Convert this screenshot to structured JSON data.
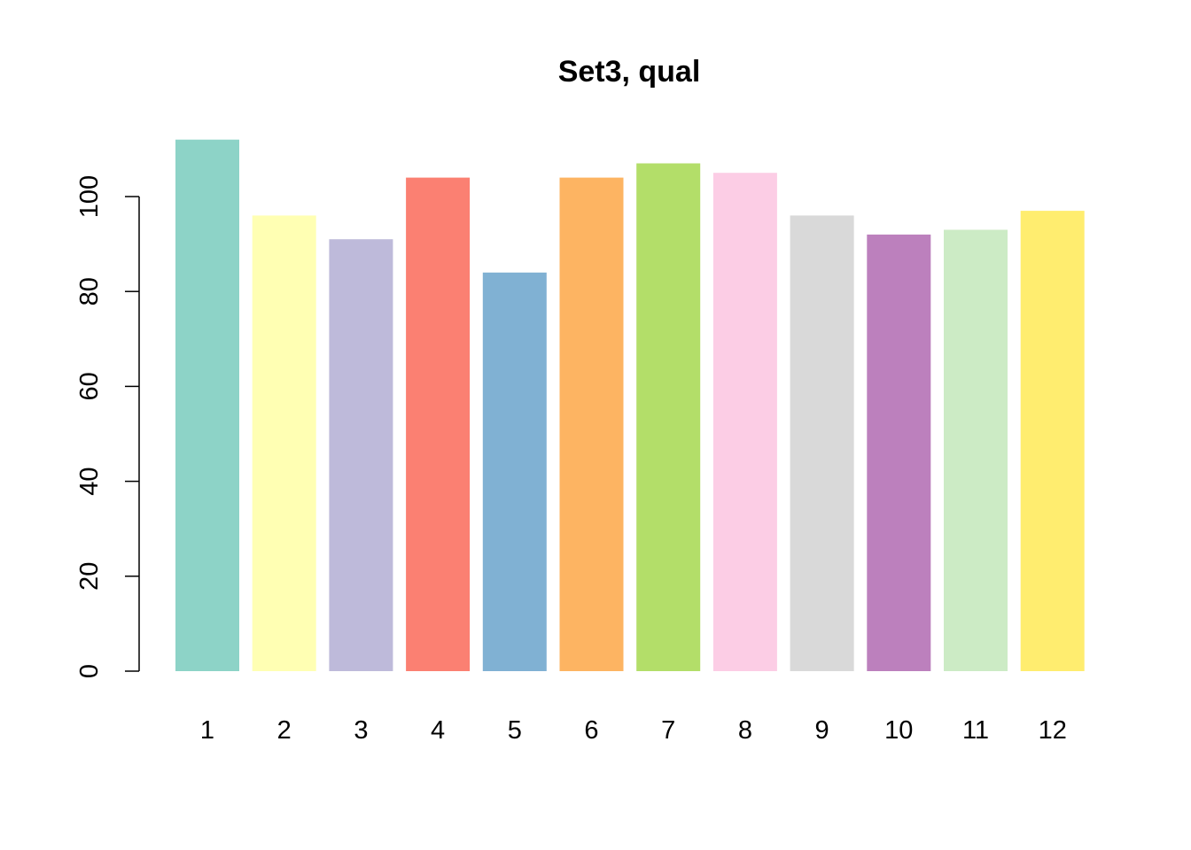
{
  "chart_data": {
    "type": "bar",
    "title": "Set3, qual",
    "xlabel": "",
    "ylabel": "",
    "categories": [
      "1",
      "2",
      "3",
      "4",
      "5",
      "6",
      "7",
      "8",
      "9",
      "10",
      "11",
      "12"
    ],
    "values": [
      112,
      96,
      91,
      104,
      84,
      104,
      107,
      105,
      96,
      92,
      93,
      97
    ],
    "colors": [
      "#8DD3C7",
      "#FFFFB3",
      "#BEBADA",
      "#FB8072",
      "#80B1D3",
      "#FDB462",
      "#B3DE69",
      "#FCCDE5",
      "#D9D9D9",
      "#BC80BD",
      "#CCEBC5",
      "#FFED6F"
    ],
    "ylim": [
      0,
      112
    ],
    "y_ticks": [
      "0",
      "20",
      "40",
      "60",
      "80",
      "100"
    ],
    "grid": false,
    "legend": "none"
  }
}
